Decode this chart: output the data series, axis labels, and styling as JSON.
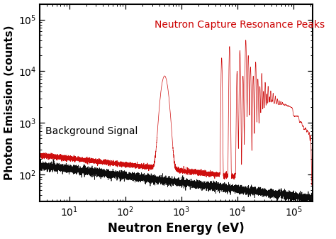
{
  "title": "",
  "xlabel": "Neutron Energy (eV)",
  "ylabel": "Photon Emission (counts)",
  "annotation_red": "Neutron Capture Resonance Peaks",
  "annotation_black": "Background Signal",
  "background_color": "#ffffff",
  "line_color_red": "#cc0000",
  "line_color_black": "#000000",
  "xlabel_fontsize": 12,
  "ylabel_fontsize": 11,
  "annotation_fontsize": 10,
  "tick_labelsize": 10
}
